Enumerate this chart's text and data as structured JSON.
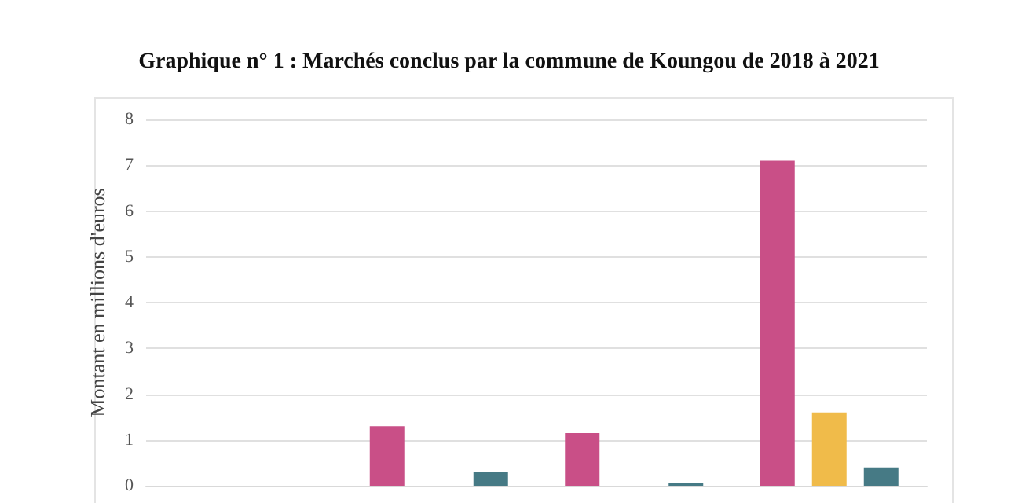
{
  "chart_data": {
    "type": "bar",
    "title": "Graphique n° 1 :  Marchés conclus par la commune de Koungou de 2018 à 2021",
    "ylabel": "Montant en millions d'euros",
    "categories": [
      null,
      null,
      null,
      null
    ],
    "series": [
      {
        "color": "#c94f87",
        "values": [
          0,
          1.3,
          1.15,
          7.1
        ]
      },
      {
        "color": "#f0bb4a",
        "values": [
          0,
          0,
          0,
          1.6
        ]
      },
      {
        "color": "#467a85",
        "values": [
          0,
          0.3,
          0.07,
          0.4
        ]
      }
    ],
    "ylim": [
      0,
      8
    ],
    "yticks": [
      0,
      1,
      2,
      3,
      4,
      5,
      6,
      7,
      8
    ],
    "grid": "y"
  }
}
